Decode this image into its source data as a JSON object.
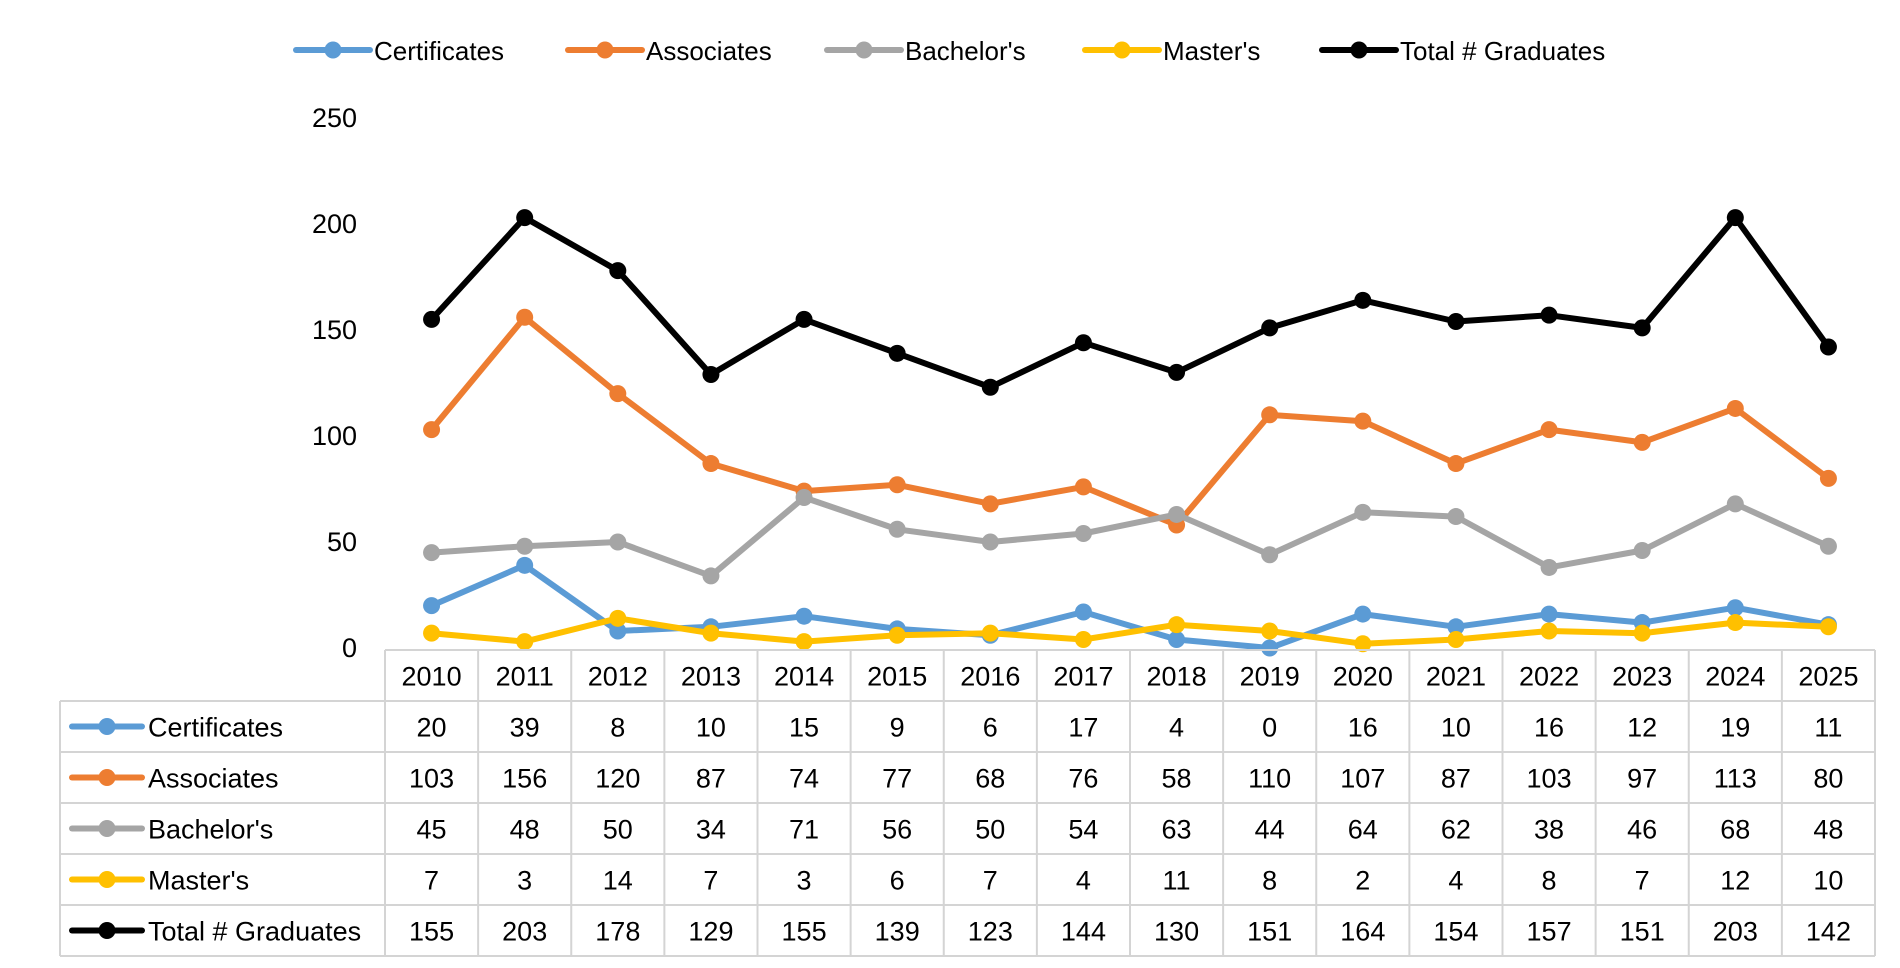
{
  "chart_data": {
    "type": "line",
    "title": "",
    "xlabel": "",
    "ylabel": "",
    "ylim": [
      0,
      250
    ],
    "y_ticks": [
      0,
      50,
      100,
      150,
      200,
      250
    ],
    "grid": false,
    "legend_position": "top",
    "data_table": true,
    "categories": [
      "2010",
      "2011",
      "2012",
      "2013",
      "2014",
      "2015",
      "2016",
      "2017",
      "2018",
      "2019",
      "2020",
      "2021",
      "2022",
      "2023",
      "2024",
      "2025"
    ],
    "series": [
      {
        "name": "Certificates",
        "color": "#5B9BD5",
        "values": [
          20,
          39,
          8,
          10,
          15,
          9,
          6,
          17,
          4,
          0,
          16,
          10,
          16,
          12,
          19,
          11
        ]
      },
      {
        "name": "Associates",
        "color": "#ED7D31",
        "values": [
          103,
          156,
          120,
          87,
          74,
          77,
          68,
          76,
          58,
          110,
          107,
          87,
          103,
          97,
          113,
          80
        ]
      },
      {
        "name": "Bachelor's",
        "color": "#A5A5A5",
        "values": [
          45,
          48,
          50,
          34,
          71,
          56,
          50,
          54,
          63,
          44,
          64,
          62,
          38,
          46,
          68,
          48
        ]
      },
      {
        "name": "Master's",
        "color": "#FFC000",
        "values": [
          7,
          3,
          14,
          7,
          3,
          6,
          7,
          4,
          11,
          8,
          2,
          4,
          8,
          7,
          12,
          10
        ]
      },
      {
        "name": "Total # Graduates",
        "color": "#000000",
        "values": [
          155,
          203,
          178,
          129,
          155,
          139,
          123,
          144,
          130,
          151,
          164,
          154,
          157,
          151,
          203,
          142
        ]
      }
    ]
  }
}
